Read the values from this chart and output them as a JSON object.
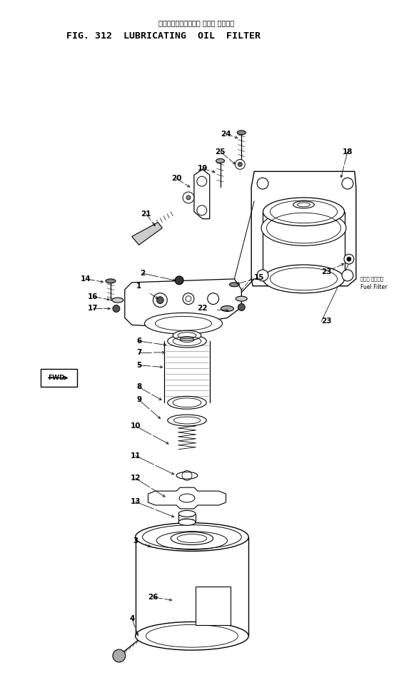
{
  "title_jp": "ルーブリケーティング オイル フィルタ",
  "title_en": "FIG. 312  LUBRICATING  OIL  FILTER",
  "bg": "#ffffff",
  "lc": "#000000",
  "fig_w": 5.52,
  "fig_h": 9.74,
  "dpi": 100,
  "fuel_jp": "フェル フィルタ",
  "fuel_en": "Fuel Filter",
  "fwd": "FWD"
}
